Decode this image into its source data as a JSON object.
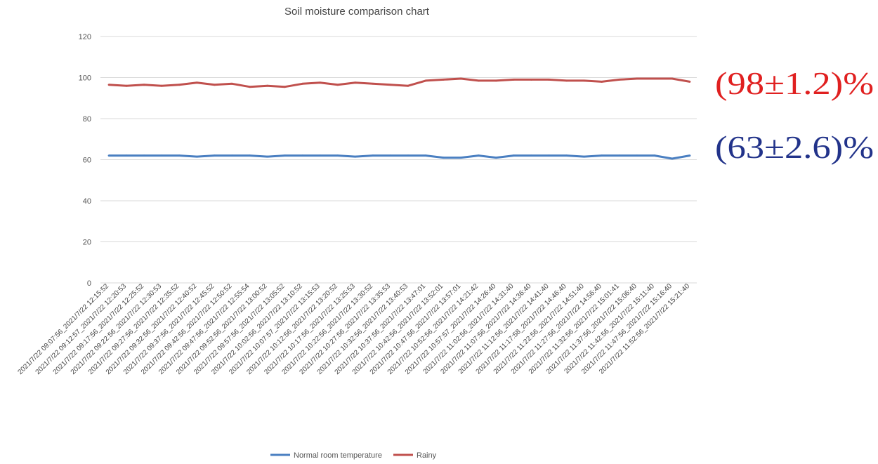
{
  "chart_data": {
    "type": "line",
    "title": "Soil moisture comparison chart",
    "xlabel": "",
    "ylabel": "",
    "ylim": [
      0,
      120
    ],
    "yticks": [
      "0",
      "20",
      "40",
      "60",
      "80",
      "100",
      "120"
    ],
    "grid": true,
    "legend_position": "bottom",
    "categories": [
      "2021/7/22  09:07:56_2021/7/22 12:15:52",
      "2021/7/22  09:12:57_2021/7/22 12:20:53",
      "2021/7/22  09:17:56_2021/7/22 12:25:52",
      "2021/7/22  09:22:56_2021/7/22 12:30:53",
      "2021/7/22  09:27:56_2021/7/22 12:35:52",
      "2021/7/22  09:32:56_2021/7/22 12:40:52",
      "2021/7/22  09:37:56_2021/7/22 12:45:52",
      "2021/7/22  09:42:56_2021/7/22 12:50:52",
      "2021/7/22  09:47:56_2021/7/22 12:55:54",
      "2021/7/22  09:52:56_2021/7/22 13:00:52",
      "2021/7/22  09:57:56_2021/7/22 13:05:52",
      "2021/7/22  10:02:56_2021/7/22 13:10:52",
      "2021/7/22  10:07:57_2021/7/22 13:15:53",
      "2021/7/22  10:12:56_2021/7/22 13:20:52",
      "2021/7/22  10:17:56_2021/7/22 13:25:53",
      "2021/7/22  10:22:56_2021/7/22 13:30:52",
      "2021/7/22  10:27:56_2021/7/22 13:35:53",
      "2021/7/22  10:32:56_2021/7/22 13:40:53",
      "2021/7/22  10:37:56_2021/7/22 13:47:01",
      "2021/7/22  10:42:56_2021/7/22 13:52:01",
      "2021/7/22  10:47:56_2021/7/22 13:57:01",
      "2021/7/22  10:52:56_2021/7/22 14:21:42",
      "2021/7/22  10:57:57_2021/7/22 14:26:40",
      "2021/7/22  11:02:56_2021/7/22 14:31:40",
      "2021/7/22  11:07:56_2021/7/22 14:36:40",
      "2021/7/22  11:12:56_2021/7/22 14:41:40",
      "2021/7/22  11:17:58_2021/7/22 14:46:40",
      "2021/7/22  11:22:56_2021/7/22 14:51:40",
      "2021/7/22  11:27:56_2021/7/22 14:56:40",
      "2021/7/22  11:32:56_2021/7/22 15:01:41",
      "2021/7/22  11:37:56_2021/7/22 15:06:40",
      "2021/7/22  11:42:56_2021/7/22 15:11:40",
      "2021/7/22  11:47:56_2021/7/22 15:16:40",
      "2021/7/22  11:52:56_2021/7/22 15:21:40"
    ],
    "series": [
      {
        "name": "Normal room temperature",
        "color": "#4a7fc1",
        "values": [
          62,
          62,
          62,
          62,
          62,
          61.5,
          62,
          62,
          62,
          61.5,
          62,
          62,
          62,
          62,
          61.5,
          62,
          62,
          62,
          62,
          61,
          61,
          62,
          61,
          62,
          62,
          62,
          62,
          61.5,
          62,
          62,
          62,
          62,
          60.5,
          62
        ]
      },
      {
        "name": "Rainy",
        "color": "#c0504d",
        "values": [
          96.5,
          96,
          96.5,
          96,
          96.5,
          97.5,
          96.5,
          97,
          95.5,
          96,
          95.5,
          97,
          97.5,
          96.5,
          97.5,
          97,
          96.5,
          96,
          98.5,
          99,
          99.5,
          98.5,
          98.5,
          99,
          99,
          99,
          98.5,
          98.5,
          98,
          99,
          99.5,
          99.5,
          99.5,
          98
        ]
      }
    ],
    "annotations": [
      {
        "text": "(98±1.2)%",
        "color": "#e02020"
      },
      {
        "text": "(63±2.6)%",
        "color": "#22338a"
      }
    ]
  }
}
